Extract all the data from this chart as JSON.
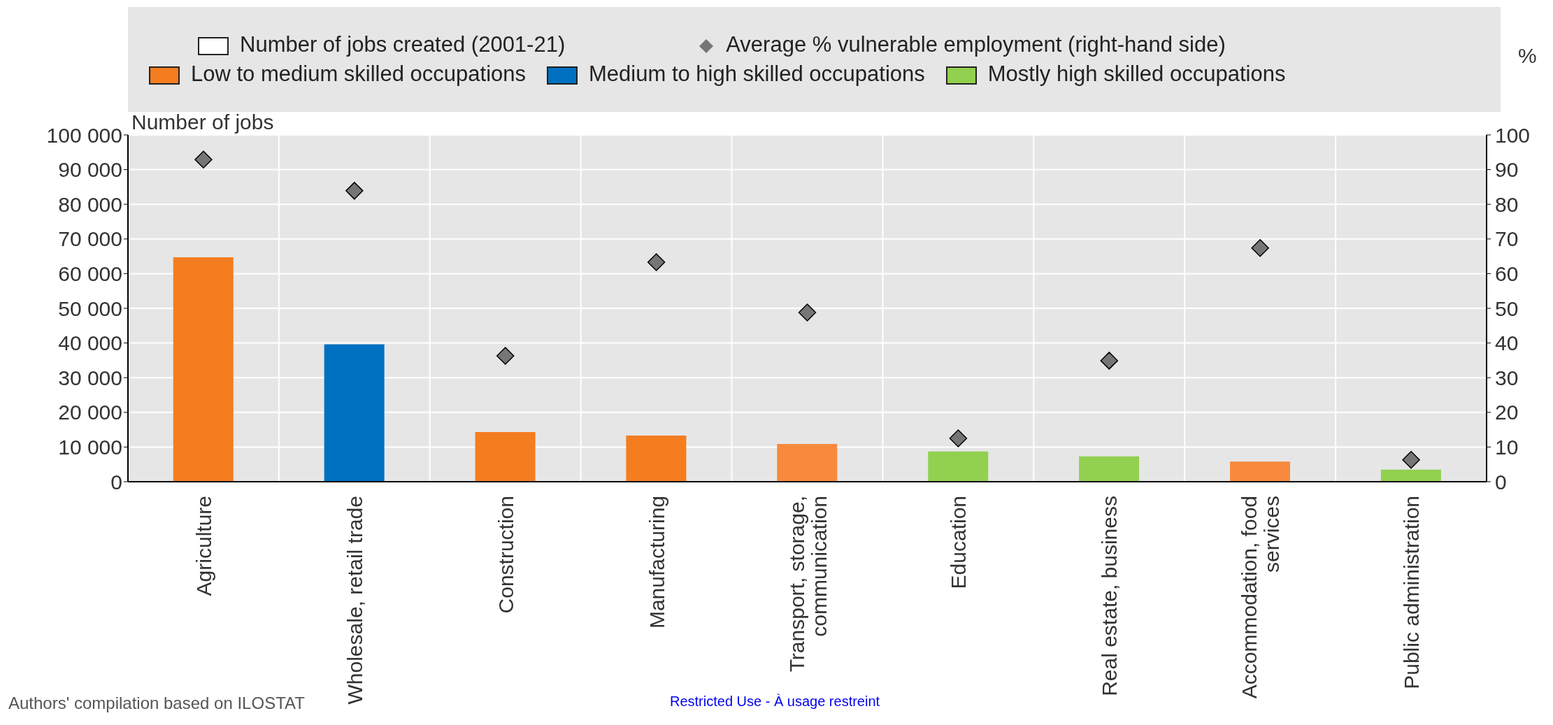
{
  "chart_data": {
    "type": "bar",
    "ylabel": "Number of jobs",
    "y2label": "%",
    "legend_title": "Number of jobs created (2001-21)",
    "categories": [
      "Agriculture",
      "Wholesale, retail trade",
      "Construction",
      "Manufacturing",
      "Transport, storage, communication",
      "Education",
      "Real estate, business",
      "Accommodation, food services",
      "Public administration"
    ],
    "series": [
      {
        "name": "Low to medium skilled occupations",
        "type": "bar",
        "color": "#f47d20",
        "colors": [
          "#f47d20",
          null,
          "#f47d20",
          "#f47d20",
          "#f78a3d",
          null,
          null,
          "#f78a3d",
          null
        ],
        "values": [
          64700,
          null,
          14300,
          13300,
          10900,
          null,
          null,
          5800,
          null
        ]
      },
      {
        "name": "Medium to high skilled occupations",
        "type": "bar",
        "color": "#0070c0",
        "values": [
          null,
          39600,
          null,
          null,
          null,
          null,
          null,
          null,
          null
        ]
      },
      {
        "name": "Mostly high skilled occupations",
        "type": "bar",
        "color": "#92d050",
        "values": [
          null,
          null,
          null,
          null,
          null,
          8700,
          7300,
          null,
          3500
        ]
      },
      {
        "name": "Average % vulnerable employment (right-hand side)",
        "type": "scatter",
        "axis": "y2",
        "color": "#767676",
        "values": [
          92.9,
          83.9,
          36.3,
          63.3,
          48.8,
          12.5,
          34.9,
          67.4,
          6.3
        ]
      }
    ],
    "stacked": true,
    "marker": "diamond",
    "grid": true,
    "legend": "top",
    "ylim": [
      0,
      100000
    ],
    "yticks": [
      {
        "value": 0,
        "label": "0"
      },
      {
        "value": 10000,
        "label": "10 000"
      },
      {
        "value": 20000,
        "label": "20 000"
      },
      {
        "value": 30000,
        "label": "30 000"
      },
      {
        "value": 40000,
        "label": "40 000"
      },
      {
        "value": 50000,
        "label": "50 000"
      },
      {
        "value": 60000,
        "label": "60 000"
      },
      {
        "value": 70000,
        "label": "70 000"
      },
      {
        "value": 80000,
        "label": "80 000"
      },
      {
        "value": 90000,
        "label": "90 000"
      },
      {
        "value": 100000,
        "label": "100 000"
      }
    ],
    "y2lim": [
      0,
      100
    ],
    "y2ticks": [
      0,
      10,
      20,
      30,
      40,
      50,
      60,
      70,
      80,
      90,
      100
    ],
    "annotations": [
      "Authors' compilation based on ILOSTAT",
      "Restricted Use - À usage restreint"
    ]
  }
}
